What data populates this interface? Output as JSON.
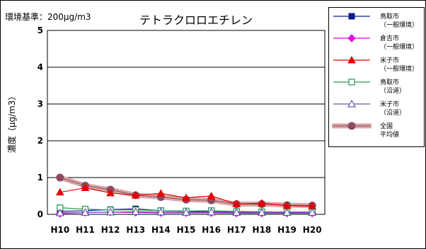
{
  "header": {
    "standard_note": "環境基準：200μg/m3"
  },
  "colors": {
    "tottori_general": "#0A1A8C",
    "kurayoshi_general": "#E600E6",
    "yonago_general": "#E60000",
    "tottori_roadside": "#2E9B5A",
    "yonago_roadside": "#6E55B0",
    "national_average": "#8E4A5E",
    "national_average_band": "#D9A6A6"
  },
  "chart_data": {
    "type": "line",
    "title": "テトラクロロエチレン",
    "xlabel": "",
    "ylabel": "濃度（μg/m3）",
    "categories": [
      "H10",
      "H11",
      "H12",
      "H13",
      "H14",
      "H15",
      "H16",
      "H17",
      "H18",
      "H19",
      "H20"
    ],
    "ylim": [
      0,
      5
    ],
    "yticks": [
      0,
      1,
      2,
      3,
      4,
      5
    ],
    "grid": true,
    "legend_position": "right",
    "series": [
      {
        "name": "鳥取市（一般環境）",
        "legend_line1": "鳥取市",
        "legend_line2": "（一般環境）",
        "marker": "filled-square",
        "color_key": "tottori_general",
        "values": [
          0.08,
          0.1,
          0.13,
          0.15,
          0.1,
          0.08,
          0.07,
          0.06,
          0.06,
          0.06,
          0.06
        ]
      },
      {
        "name": "倉吉市（一般環境）",
        "legend_line1": "倉吉市",
        "legend_line2": "（一般環境）",
        "marker": "filled-diamond",
        "color_key": "kurayoshi_general",
        "values": [
          0.02,
          0.05,
          0.06,
          0.05,
          0.04,
          0.04,
          0.04,
          0.03,
          0.03,
          0.03,
          0.03
        ]
      },
      {
        "name": "米子市（一般環境）",
        "legend_line1": "米子市",
        "legend_line2": "（一般環境）",
        "marker": "filled-triangle",
        "color_key": "yonago_general",
        "values": [
          0.6,
          0.72,
          0.58,
          0.52,
          0.57,
          0.45,
          0.5,
          0.28,
          0.3,
          0.24,
          0.22
        ]
      },
      {
        "name": "鳥取市（沿道）",
        "legend_line1": "鳥取市",
        "legend_line2": "（沿道）",
        "marker": "open-square",
        "color_key": "tottori_roadside",
        "values": [
          0.18,
          0.14,
          0.12,
          0.12,
          0.1,
          0.09,
          0.1,
          0.08,
          0.07,
          0.06,
          0.06
        ]
      },
      {
        "name": "米子市（沿道）",
        "legend_line1": "米子市",
        "legend_line2": "（沿道）",
        "marker": "open-triangle",
        "color_key": "yonago_roadside",
        "values": [
          0.04,
          0.05,
          0.06,
          0.07,
          0.06,
          0.05,
          0.06,
          0.05,
          0.05,
          0.05,
          0.05
        ]
      },
      {
        "name": "全国平均値",
        "legend_line1": "全国",
        "legend_line2": "平均値",
        "marker": "filled-circle-band",
        "color_key": "national_average",
        "values": [
          1.0,
          0.78,
          0.67,
          0.52,
          0.47,
          0.4,
          0.38,
          0.28,
          0.28,
          0.25,
          0.24
        ]
      }
    ]
  }
}
